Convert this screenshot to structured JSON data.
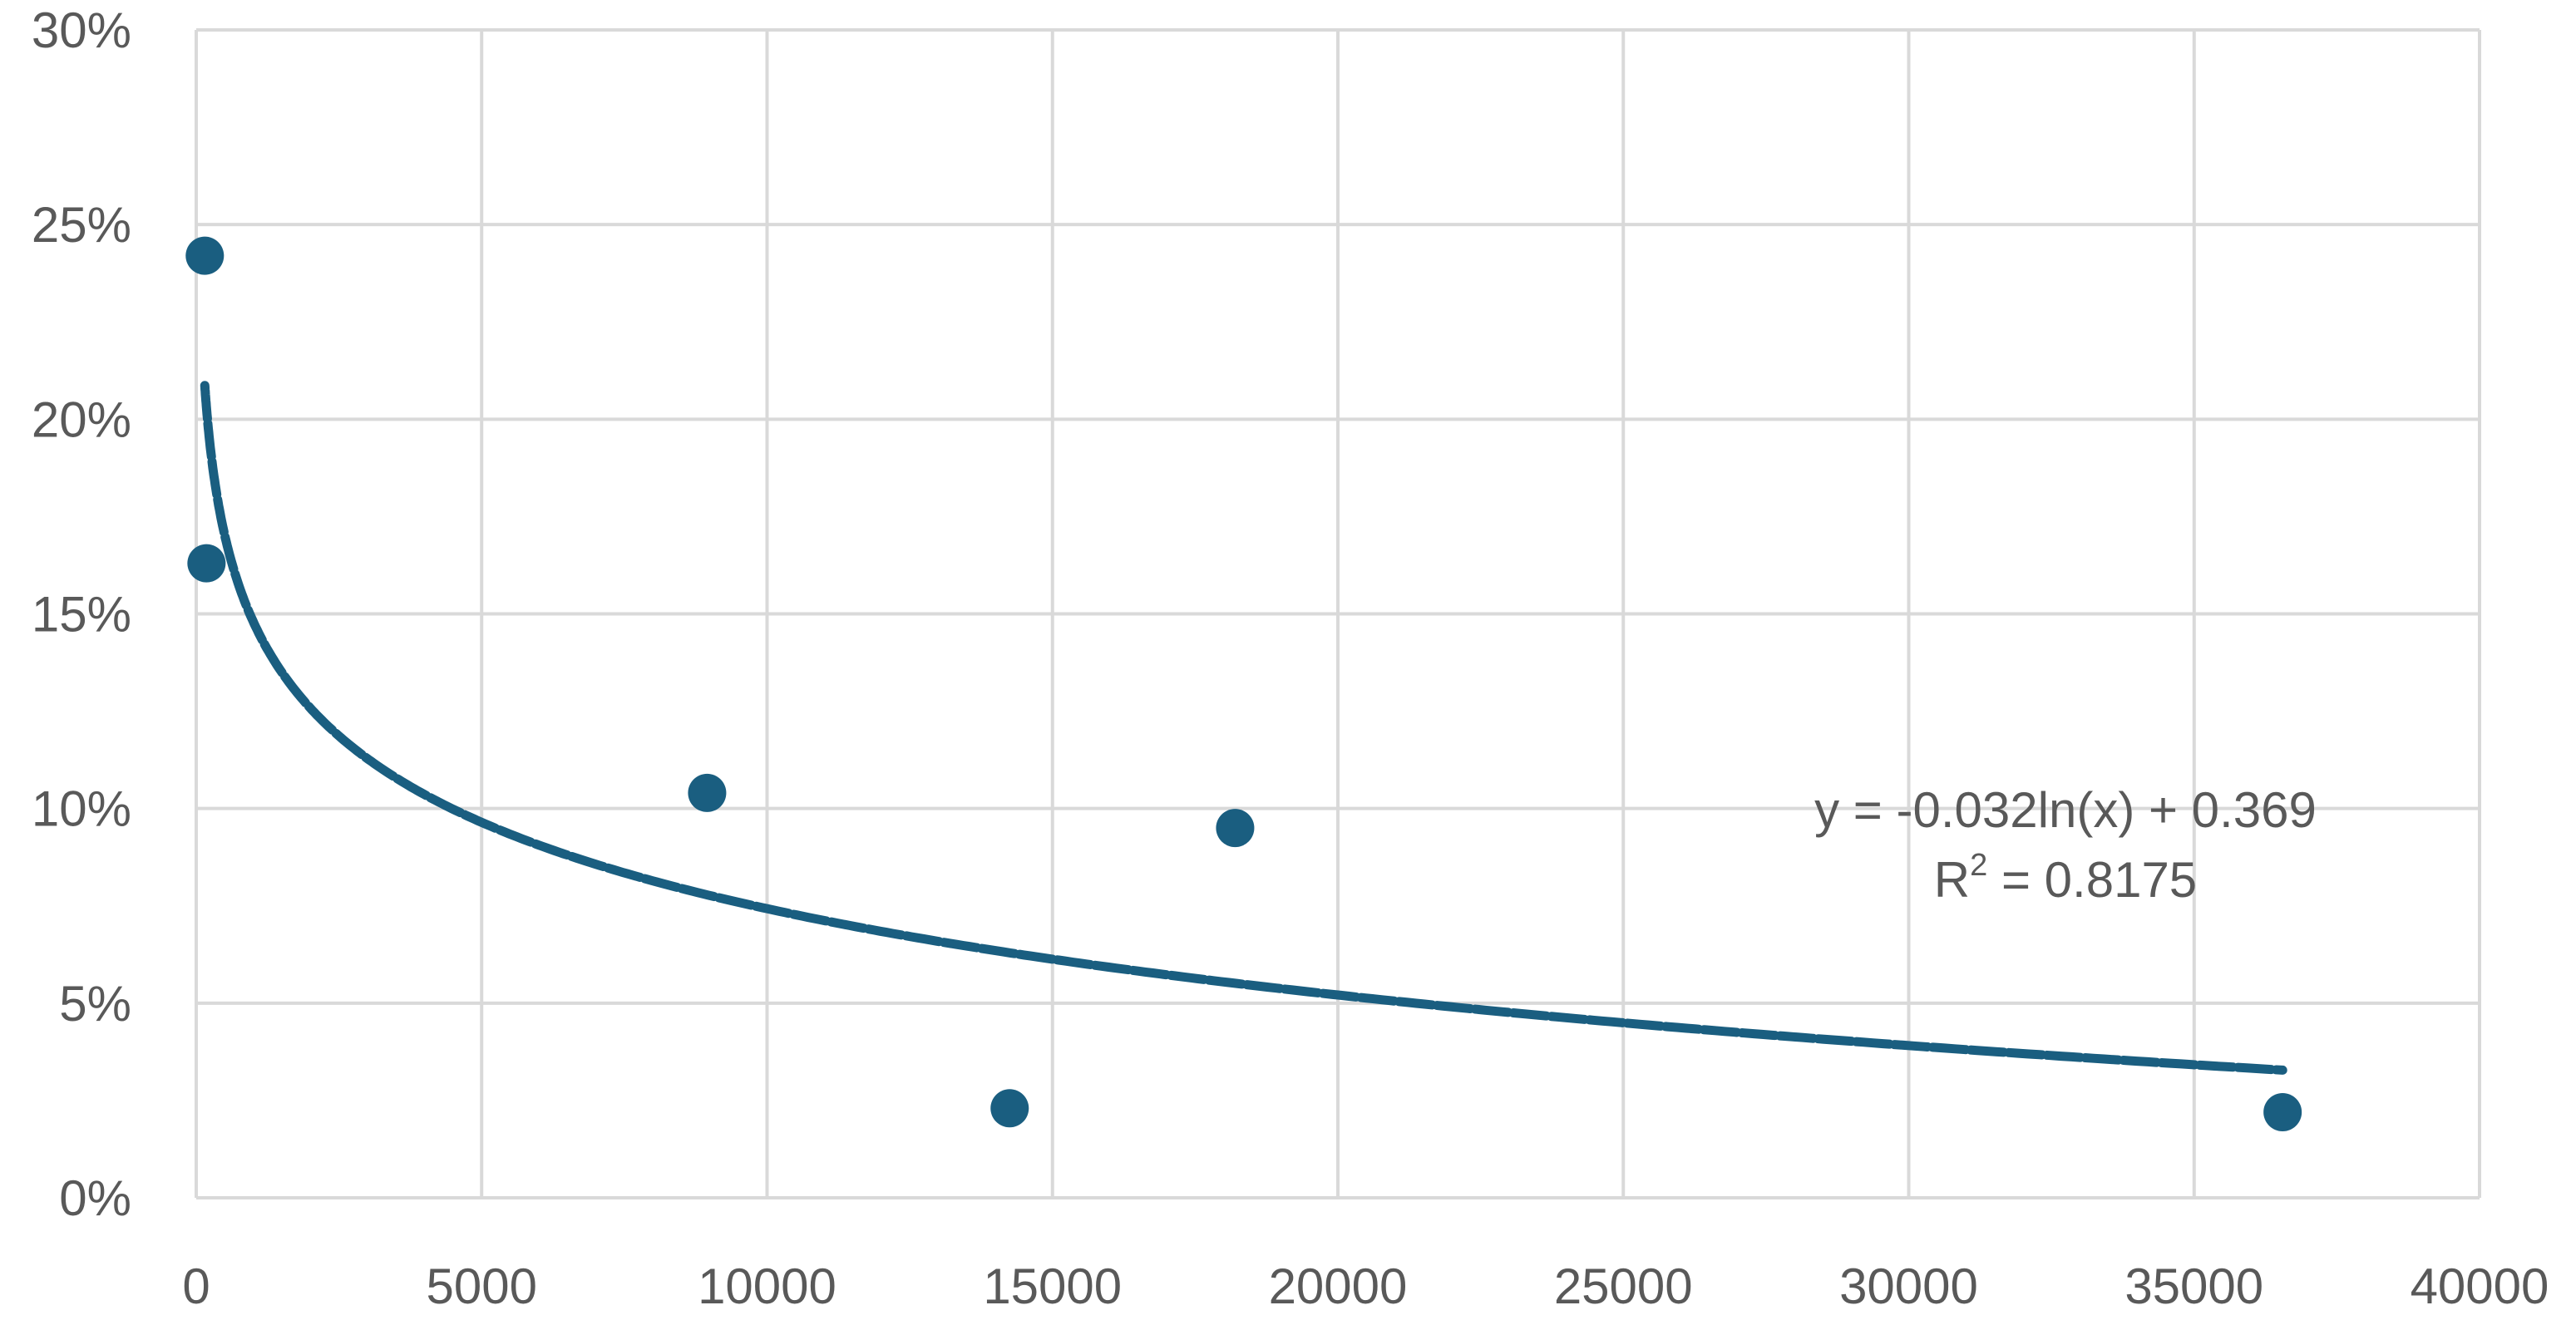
{
  "chart_data": {
    "type": "scatter",
    "title": "",
    "xlabel": "",
    "ylabel": "",
    "xlim": [
      0,
      40000
    ],
    "ylim": [
      0,
      0.3
    ],
    "x_ticks": [
      0,
      5000,
      10000,
      15000,
      20000,
      25000,
      30000,
      35000,
      40000
    ],
    "x_tick_labels": [
      "0",
      "5000",
      "10000",
      "15000",
      "20000",
      "25000",
      "30000",
      "35000",
      "40000"
    ],
    "y_ticks": [
      0,
      0.05,
      0.1,
      0.15,
      0.2,
      0.25,
      0.3
    ],
    "y_tick_labels": [
      "0%",
      "5%",
      "10%",
      "15%",
      "20%",
      "25%",
      "30%"
    ],
    "grid": true,
    "legend": "none",
    "series": [
      {
        "points": [
          {
            "x": 150,
            "y": 0.242
          },
          {
            "x": 180,
            "y": 0.163
          },
          {
            "x": 8950,
            "y": 0.104
          },
          {
            "x": 14250,
            "y": 0.023
          },
          {
            "x": 18200,
            "y": 0.095
          },
          {
            "x": 36550,
            "y": 0.022
          }
        ],
        "color": "#1a5e80"
      }
    ],
    "trendline": {
      "type": "logarithmic",
      "a": -0.032,
      "b": 0.369,
      "x_from": 150,
      "x_to": 36550,
      "style": "dashed",
      "color": "#1a5e80",
      "equation_label": "y = -0.032ln(x) + 0.369",
      "r2_label_prefix": "R",
      "r2_label_sup": "2",
      "r2_label_rest": " = 0.8175"
    },
    "colors": {
      "grid": "#d9d9d9",
      "text": "#595959",
      "marker": "#1a5e80"
    }
  }
}
